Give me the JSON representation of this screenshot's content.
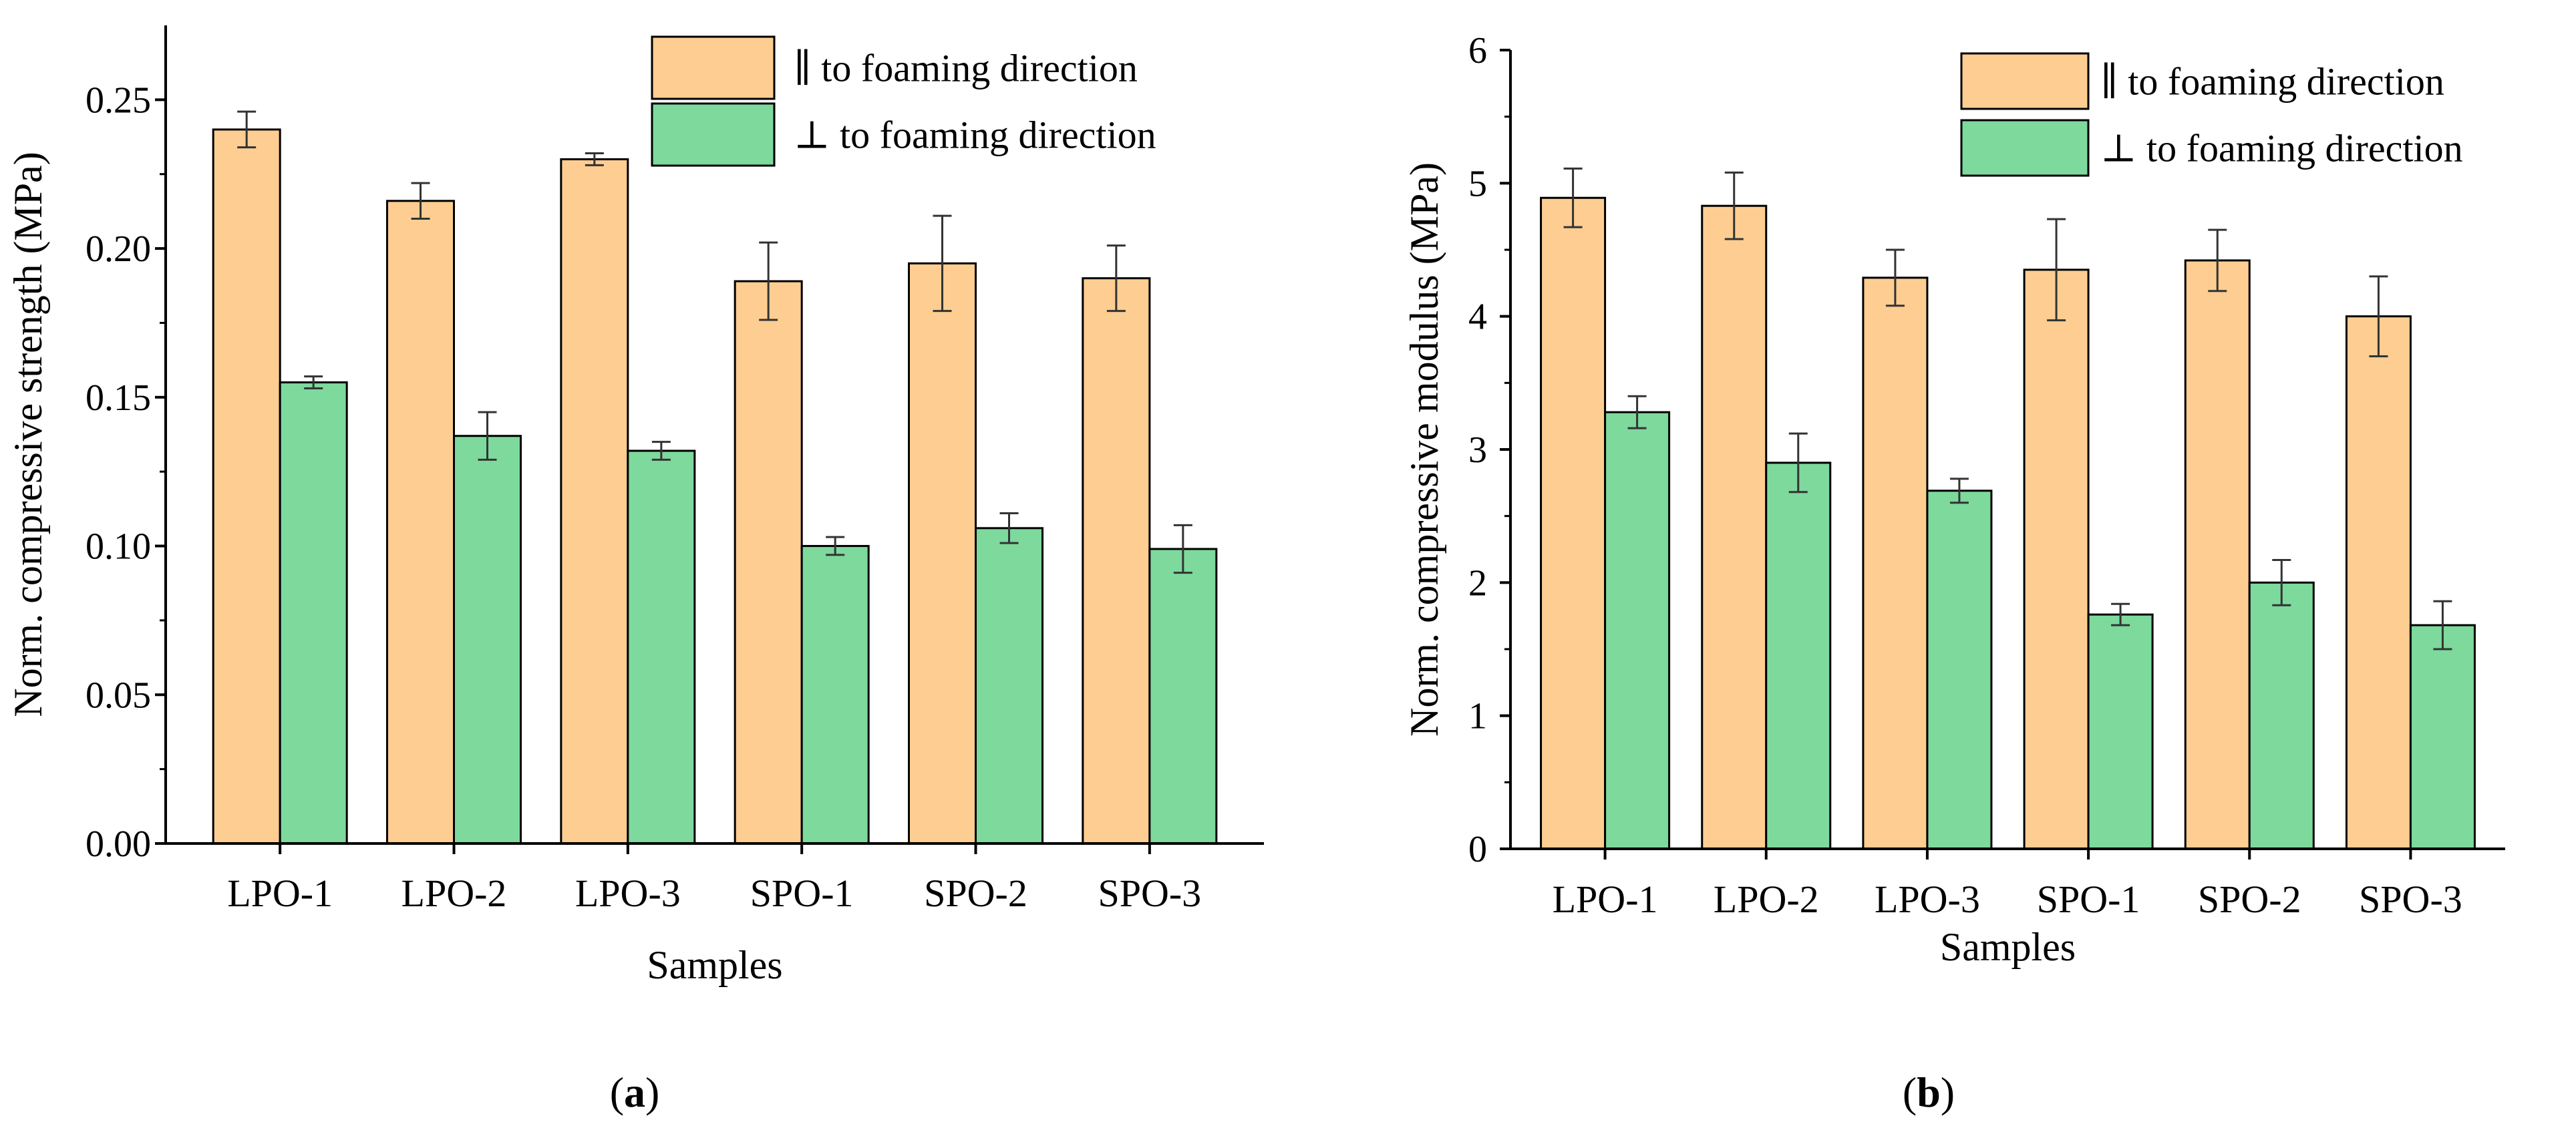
{
  "chart_data": [
    {
      "type": "bar",
      "panel_label": "a",
      "xlabel": "Samples",
      "ylabel": "Norm. compressive strength (MPa)",
      "ylim": [
        0,
        0.275
      ],
      "yticks": [
        0,
        0.05,
        0.1,
        0.15,
        0.2,
        0.25
      ],
      "ytick_labels": [
        "0.00",
        "0.05",
        "0.10",
        "0.15",
        "0.20",
        "0.25"
      ],
      "categories": [
        "LPO-1",
        "LPO-2",
        "LPO-3",
        "SPO-1",
        "SPO-2",
        "SPO-3"
      ],
      "legend_position": "top-right",
      "series": [
        {
          "name": "∥ to foaming direction",
          "color": "#fdcd92",
          "values": [
            0.24,
            0.216,
            0.23,
            0.189,
            0.195,
            0.19
          ],
          "errors": [
            0.006,
            0.006,
            0.002,
            0.013,
            0.016,
            0.011
          ]
        },
        {
          "name": "⊥ to foaming direction",
          "color": "#7dd99c",
          "values": [
            0.155,
            0.137,
            0.132,
            0.1,
            0.106,
            0.099
          ],
          "errors": [
            0.002,
            0.008,
            0.003,
            0.003,
            0.005,
            0.008
          ]
        }
      ]
    },
    {
      "type": "bar",
      "panel_label": "b",
      "xlabel": "Samples",
      "ylabel": "Norm. compressive modulus (MPa)",
      "ylim": [
        0,
        6
      ],
      "yticks": [
        0,
        1,
        2,
        3,
        4,
        5,
        6
      ],
      "ytick_labels": [
        "0",
        "1",
        "2",
        "3",
        "4",
        "5",
        "6"
      ],
      "categories": [
        "LPO-1",
        "LPO-2",
        "LPO-3",
        "SPO-1",
        "SPO-2",
        "SPO-3"
      ],
      "legend_position": "top-right",
      "series": [
        {
          "name": "∥ to foaming direction",
          "color": "#fdcd92",
          "values": [
            4.89,
            4.83,
            4.29,
            4.35,
            4.42,
            4.0
          ],
          "errors": [
            0.22,
            0.25,
            0.21,
            0.38,
            0.23,
            0.3
          ]
        },
        {
          "name": "⊥ to foaming direction",
          "color": "#7dd99c",
          "values": [
            3.28,
            2.9,
            2.69,
            1.76,
            2.0,
            1.68
          ],
          "errors": [
            0.12,
            0.22,
            0.09,
            0.08,
            0.17,
            0.18
          ]
        }
      ]
    }
  ]
}
